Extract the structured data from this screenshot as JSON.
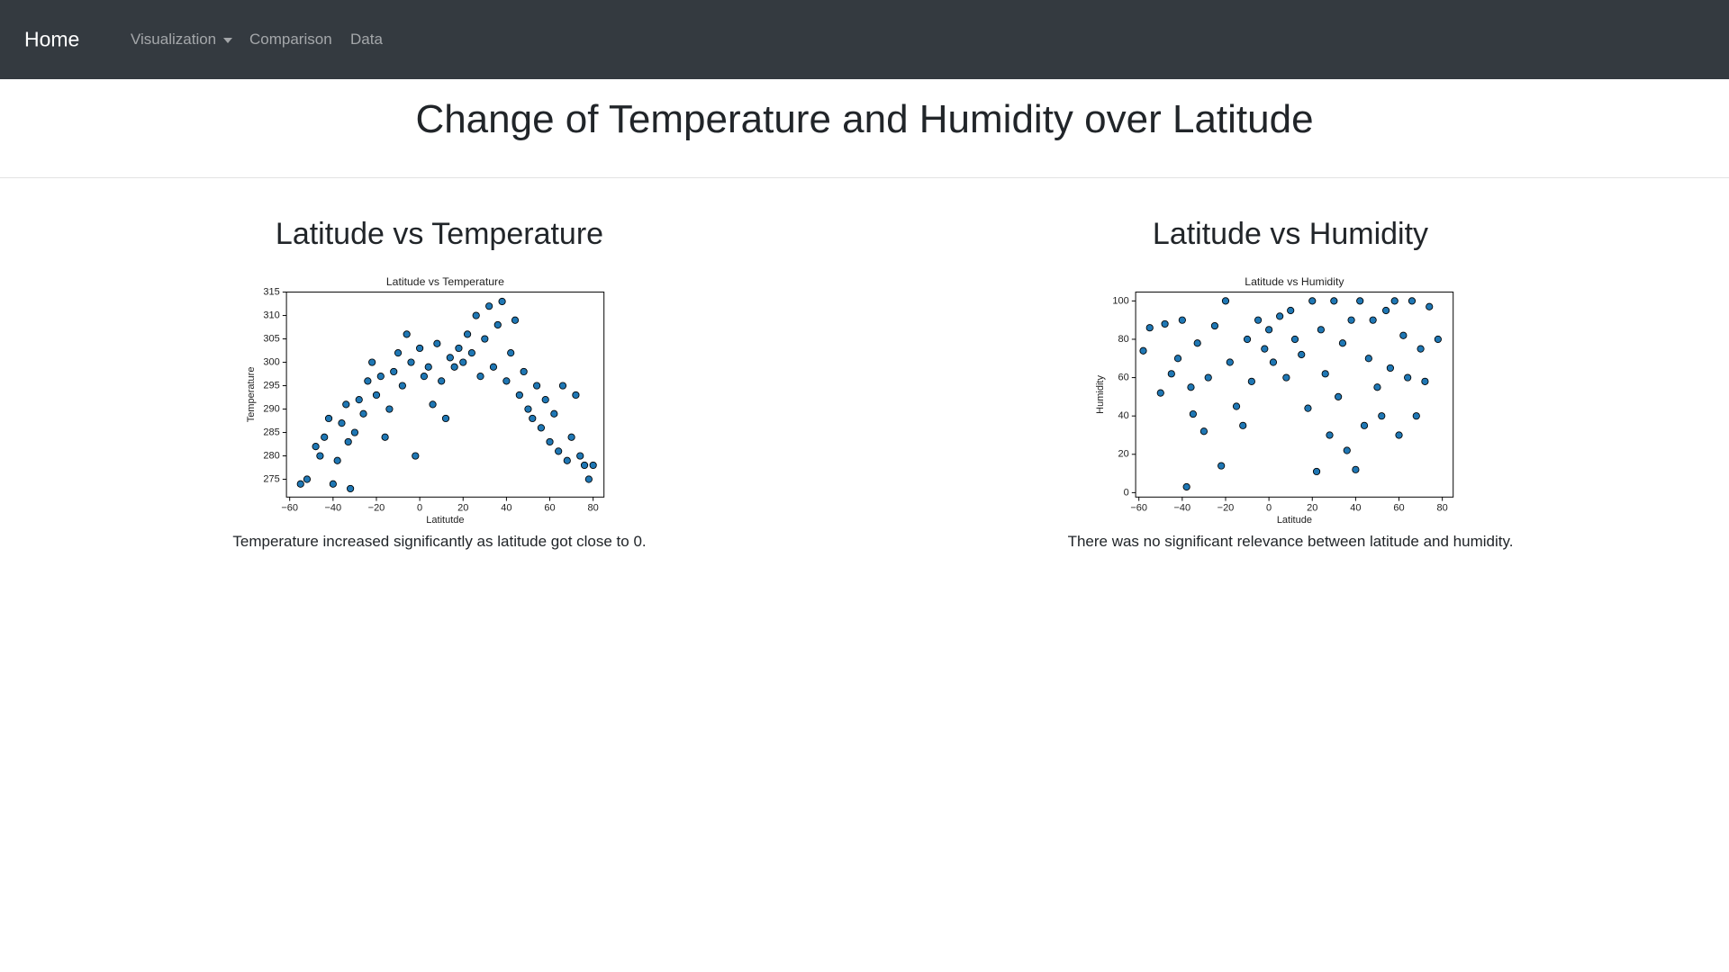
{
  "nav": {
    "brand": "Home",
    "links": [
      "Visualization",
      "Comparison",
      "Data"
    ]
  },
  "header": {
    "title": "Change of Temperature and Humidity over Latitude"
  },
  "panels": [
    {
      "heading": "Latitude vs Temperature",
      "caption": "Temperature increased significantly as latitude got close to 0."
    },
    {
      "heading": "Latitude vs Humidity",
      "caption": "There was no significant relevance between latitude and humidity."
    }
  ],
  "chart_data": [
    {
      "type": "scatter",
      "title": "Latitude vs Temperature",
      "x_label": "Latitutde",
      "y_label": "Temperature",
      "color": "#1f77b4",
      "xlim": [
        -61.5,
        85
      ],
      "ylim": [
        271.2,
        315
      ],
      "xticks": [
        {
          "value": -60,
          "label": "−60"
        },
        {
          "value": -40,
          "label": "−40"
        },
        {
          "value": -20,
          "label": "−20"
        },
        0,
        20,
        40,
        60,
        80
      ],
      "yticks": [
        275,
        280,
        285,
        290,
        295,
        300,
        305,
        310,
        315
      ],
      "x": [
        -55,
        -52,
        -48,
        -46,
        -44,
        -42,
        -40,
        -38,
        -36,
        -34,
        -33,
        -32,
        -30,
        -28,
        -26,
        -24,
        -22,
        -20,
        -18,
        -16,
        -14,
        -12,
        -10,
        -8,
        -6,
        -4,
        -2,
        0,
        2,
        4,
        6,
        8,
        10,
        12,
        14,
        16,
        18,
        20,
        22,
        24,
        26,
        28,
        30,
        32,
        34,
        36,
        38,
        40,
        42,
        44,
        46,
        48,
        50,
        52,
        54,
        56,
        58,
        60,
        62,
        64,
        66,
        68,
        70,
        72,
        74,
        76,
        78,
        80
      ],
      "values": [
        274,
        275,
        282,
        280,
        284,
        288,
        274,
        279,
        287,
        291,
        283,
        273,
        285,
        292,
        289,
        296,
        300,
        293,
        297,
        284,
        290,
        298,
        302,
        295,
        306,
        300,
        280,
        303,
        297,
        299,
        291,
        304,
        296,
        288,
        301,
        299,
        303,
        300,
        306,
        302,
        310,
        297,
        305,
        312,
        299,
        308,
        313,
        296,
        302,
        309,
        293,
        298,
        290,
        288,
        295,
        286,
        292,
        283,
        289,
        281,
        295,
        279,
        284,
        293,
        280,
        278,
        275,
        278
      ]
    },
    {
      "type": "scatter",
      "title": "Latitude vs Humidity",
      "x_label": "Latitude",
      "y_label": "Humidity",
      "color": "#1f77b4",
      "xlim": [
        -61.5,
        85
      ],
      "ylim": [
        -2.3,
        104.6
      ],
      "xticks": [
        {
          "value": -60,
          "label": "−60"
        },
        {
          "value": -40,
          "label": "−40"
        },
        {
          "value": -20,
          "label": "−20"
        },
        0,
        20,
        40,
        60,
        80
      ],
      "yticks": [
        0,
        20,
        40,
        60,
        80,
        100
      ],
      "x": [
        -58,
        -55,
        -50,
        -48,
        -45,
        -42,
        -40,
        -38,
        -36,
        -35,
        -33,
        -30,
        -28,
        -25,
        -22,
        -20,
        -18,
        -15,
        -12,
        -10,
        -8,
        -5,
        -2,
        0,
        2,
        5,
        8,
        10,
        12,
        15,
        18,
        20,
        22,
        24,
        26,
        28,
        30,
        32,
        34,
        36,
        38,
        40,
        42,
        44,
        46,
        48,
        50,
        52,
        54,
        56,
        58,
        60,
        62,
        64,
        66,
        68,
        70,
        72,
        74,
        78
      ],
      "values": [
        74,
        86,
        52,
        88,
        62,
        70,
        90,
        3,
        55,
        41,
        78,
        32,
        60,
        87,
        14,
        100,
        68,
        45,
        35,
        80,
        58,
        90,
        75,
        85,
        68,
        92,
        60,
        95,
        80,
        72,
        44,
        100,
        11,
        85,
        62,
        30,
        100,
        50,
        78,
        22,
        90,
        12,
        100,
        35,
        70,
        90,
        55,
        40,
        95,
        65,
        100,
        30,
        82,
        60,
        100,
        40,
        75,
        58,
        97,
        80
      ]
    }
  ]
}
